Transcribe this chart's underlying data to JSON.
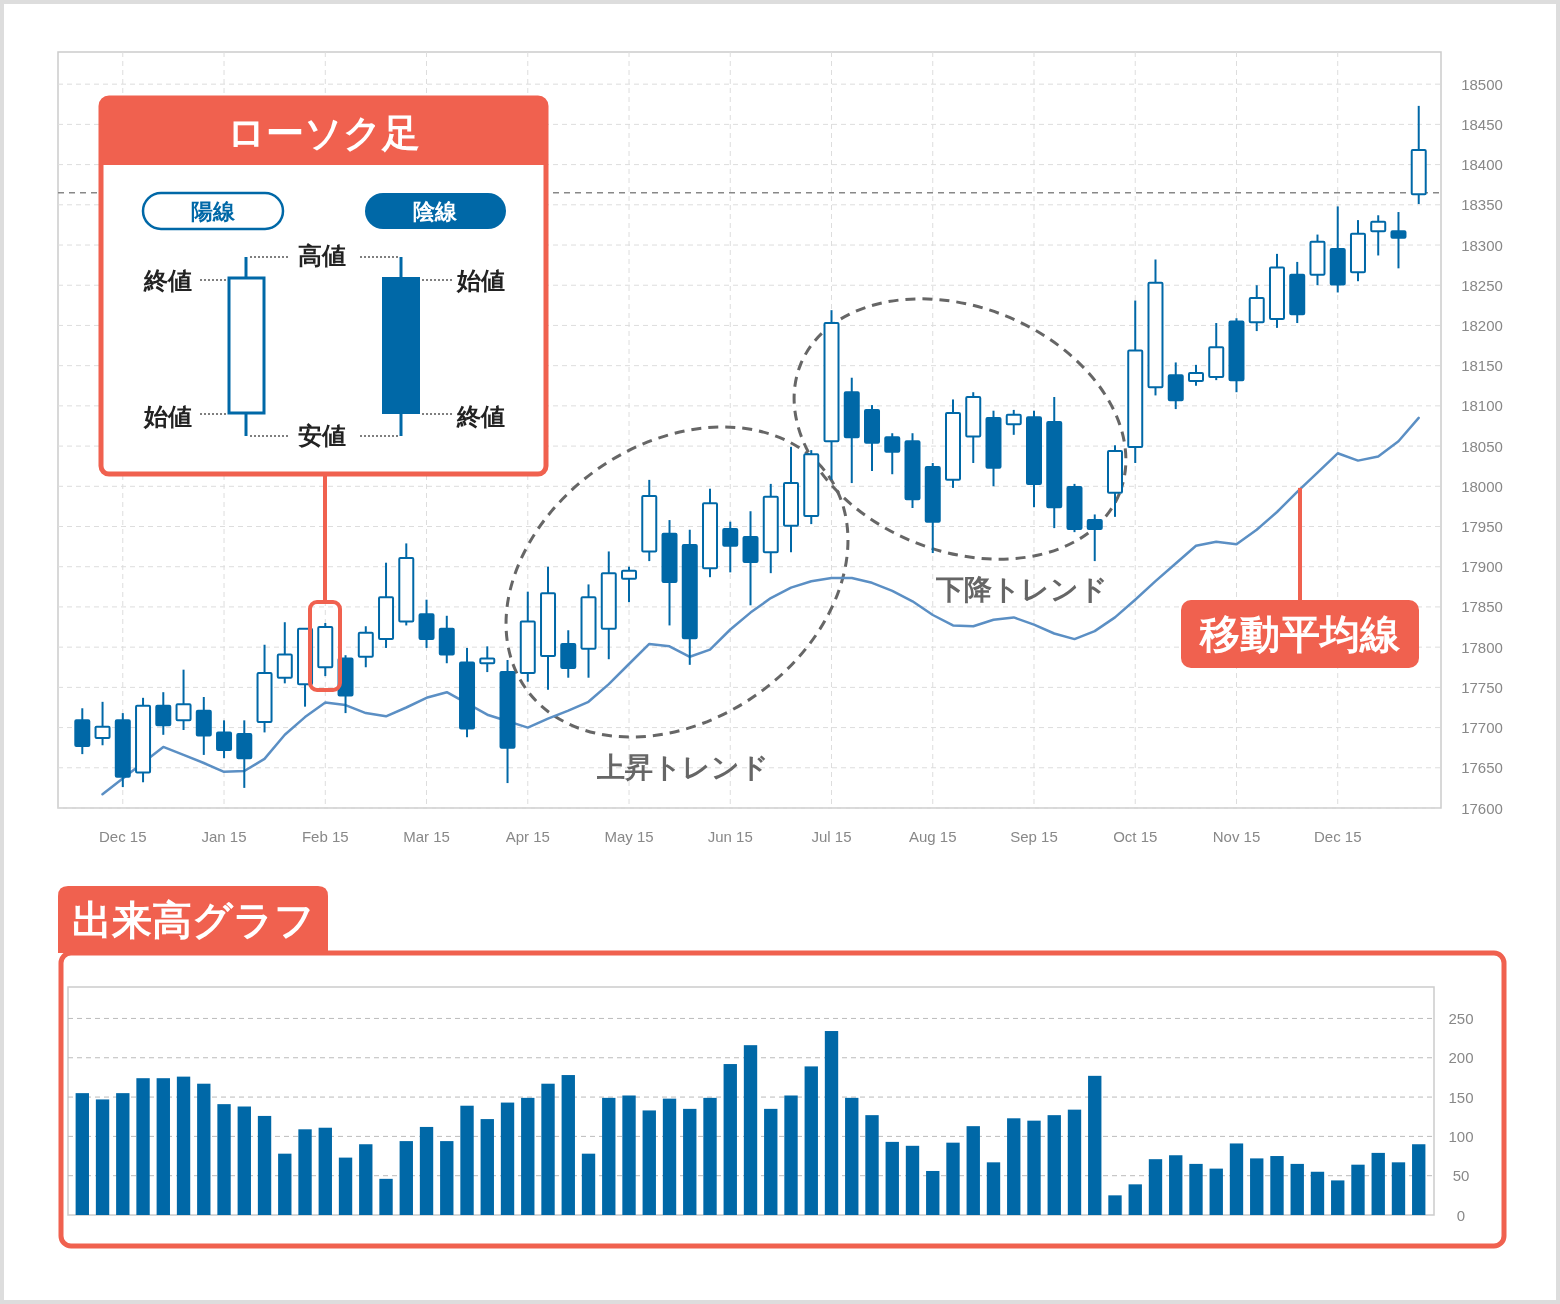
{
  "chart_data": [
    {
      "type": "candlestick",
      "categories": [
        null,
        null,
        "Dec 15",
        null,
        null,
        null,
        null,
        "Jan 15",
        null,
        null,
        null,
        null,
        "Feb 15",
        null,
        null,
        null,
        null,
        "Mar 15",
        null,
        null,
        null,
        null,
        "Apr 15",
        null,
        null,
        null,
        null,
        "May 15",
        null,
        null,
        null,
        null,
        "Jun 15",
        null,
        null,
        null,
        null,
        "Jul 15",
        null,
        null,
        null,
        null,
        "Aug 15",
        null,
        null,
        null,
        null,
        "Sep 15",
        null,
        null,
        null,
        null,
        "Oct 15",
        null,
        null,
        null,
        null,
        "Nov 15",
        null,
        null,
        null,
        null,
        "Dec 15",
        null,
        null,
        null,
        null
      ],
      "ohlc": [
        [
          17709,
          17724,
          17667,
          17677
        ],
        [
          17687,
          17732,
          17678,
          17701
        ],
        [
          17709,
          17718,
          17626,
          17639
        ],
        [
          17644,
          17737,
          17632,
          17727
        ],
        [
          17727,
          17744,
          17691,
          17703
        ],
        [
          17709,
          17772,
          17697,
          17729
        ],
        [
          17721,
          17738,
          17666,
          17690
        ],
        [
          17694,
          17709,
          17662,
          17672
        ],
        [
          17692,
          17709,
          17625,
          17662
        ],
        [
          17707,
          17803,
          17694,
          17768
        ],
        [
          17762,
          17831,
          17755,
          17791
        ],
        [
          17754,
          17823,
          17726,
          17823
        ],
        [
          17775,
          17830,
          17764,
          17825
        ],
        [
          17786,
          17790,
          17718,
          17740
        ],
        [
          17788,
          17826,
          17775,
          17818
        ],
        [
          17810,
          17905,
          17799,
          17862
        ],
        [
          17832,
          17929,
          17827,
          17911
        ],
        [
          17841,
          17859,
          17799,
          17810
        ],
        [
          17823,
          17839,
          17780,
          17791
        ],
        [
          17781,
          17799,
          17688,
          17699
        ],
        [
          17780,
          17801,
          17769,
          17786
        ],
        [
          17769,
          17784,
          17631,
          17675
        ],
        [
          17768,
          17869,
          17757,
          17832
        ],
        [
          17789,
          17900,
          17747,
          17867
        ],
        [
          17804,
          17821,
          17762,
          17774
        ],
        [
          17798,
          17878,
          17762,
          17862
        ],
        [
          17823,
          17919,
          17785,
          17892
        ],
        [
          17885,
          17900,
          17856,
          17895
        ],
        [
          17919,
          18008,
          17907,
          17988
        ],
        [
          17941,
          17958,
          17827,
          17881
        ],
        [
          17927,
          17946,
          17778,
          17811
        ],
        [
          17898,
          17997,
          17887,
          17979
        ],
        [
          17947,
          17956,
          17893,
          17926
        ],
        [
          17937,
          17969,
          17852,
          17906
        ],
        [
          17918,
          18003,
          17892,
          17987
        ],
        [
          17951,
          18049,
          17918,
          18004
        ],
        [
          17963,
          18045,
          17953,
          18040
        ],
        [
          18056,
          18219,
          18008,
          18203
        ],
        [
          18117,
          18135,
          18004,
          18061
        ],
        [
          18095,
          18101,
          18019,
          18054
        ],
        [
          18061,
          18066,
          18015,
          18043
        ],
        [
          18056,
          18066,
          17973,
          17984
        ],
        [
          18024,
          18029,
          17917,
          17956
        ],
        [
          18008,
          18108,
          17998,
          18091
        ],
        [
          18062,
          18117,
          18029,
          18111
        ],
        [
          18085,
          18094,
          18000,
          18023
        ],
        [
          18077,
          18095,
          18064,
          18089
        ],
        [
          18086,
          18094,
          17974,
          18003
        ],
        [
          18080,
          18111,
          17948,
          17974
        ],
        [
          17999,
          18003,
          17943,
          17947
        ],
        [
          17958,
          17965,
          17907,
          17947
        ],
        [
          17992,
          18051,
          17962,
          18044
        ],
        [
          18049,
          18231,
          18029,
          18169
        ],
        [
          18123,
          18282,
          18113,
          18253
        ],
        [
          18138,
          18154,
          18096,
          18107
        ],
        [
          18131,
          18151,
          18125,
          18141
        ],
        [
          18136,
          18203,
          18132,
          18173
        ],
        [
          18205,
          18209,
          18117,
          18132
        ],
        [
          18204,
          18250,
          18193,
          18234
        ],
        [
          18208,
          18289,
          18197,
          18272
        ],
        [
          18263,
          18279,
          18203,
          18214
        ],
        [
          18263,
          18313,
          18250,
          18304
        ],
        [
          18295,
          18348,
          18241,
          18251
        ],
        [
          18266,
          18331,
          18255,
          18314
        ],
        [
          18317,
          18337,
          18287,
          18329
        ],
        [
          18317,
          18341,
          18271,
          18309
        ],
        [
          18363,
          18473,
          18351,
          18418
        ]
      ],
      "color": "#0068a7",
      "series": [
        {
          "type": "line",
          "color": "#5b8fc4",
          "values": [
            null,
            17617,
            null,
            null,
            17676,
            17666,
            17656,
            17645,
            17646,
            17661,
            17691,
            17713,
            17731,
            17728,
            17718,
            17714,
            17725,
            17737,
            17744,
            null,
            17716,
            null,
            17700,
            17711,
            17721,
            17732,
            17754,
            17779,
            17804,
            17801,
            17788,
            17797,
            17822,
            17843,
            17861,
            17874,
            17882,
            17886,
            17886,
            17880,
            17870,
            17857,
            17840,
            17827,
            17826,
            17834,
            17837,
            17828,
            17817,
            17810,
            17820,
            17837,
            17859,
            17882,
            17904,
            17926,
            17931,
            17928,
            17946,
            17968,
            17993,
            18017,
            18041,
            18032,
            18037,
            18056,
            18085
          ]
        }
      ],
      "ylim": [
        17600,
        18540
      ],
      "yticks": [
        17600,
        17650,
        17700,
        17750,
        17800,
        17850,
        17900,
        17950,
        18000,
        18050,
        18100,
        18150,
        18200,
        18250,
        18300,
        18350,
        18400,
        18450,
        18500
      ],
      "grid": true,
      "ref_lines": [
        {
          "axis": "y",
          "value": 18365,
          "color": "#888888",
          "line_style": "dashed"
        }
      ],
      "annotations": [
        "ローソク足",
        "陽線",
        "陰線",
        "高値",
        "終値",
        "始値",
        "安値",
        "始値",
        "終値",
        "上昇トレンド",
        "下降トレンド",
        {
          "text": "移動平均線",
          "y": 17998
        }
      ]
    },
    {
      "type": "bar",
      "title": "出来高グラフ",
      "categories": [
        null,
        null,
        null,
        null,
        null,
        null,
        null,
        null,
        null,
        null,
        null,
        null,
        null,
        null,
        null,
        null,
        null,
        null,
        null,
        null,
        null,
        null,
        null,
        null,
        null,
        null,
        null,
        null,
        null,
        null,
        null,
        null,
        null,
        null,
        null,
        null,
        null,
        null,
        null,
        null,
        null,
        null,
        null,
        null,
        null,
        null,
        null,
        null,
        null,
        null,
        null,
        null,
        null,
        null,
        null,
        null,
        null,
        null,
        null,
        null,
        null,
        null,
        null,
        null,
        null,
        null,
        null
      ],
      "values": [
        155,
        147,
        155,
        174,
        174,
        176,
        167,
        141,
        138,
        126,
        78,
        109,
        111,
        73,
        90,
        46,
        94,
        112,
        94,
        139,
        122,
        143,
        149,
        167,
        178,
        78,
        149,
        152,
        133,
        148,
        135,
        149,
        192,
        216,
        135,
        152,
        189,
        234,
        149,
        127,
        93,
        88,
        56,
        92,
        113,
        67,
        123,
        120,
        127,
        134,
        177,
        25,
        39,
        71,
        76,
        65,
        59,
        91,
        72,
        75,
        65,
        55,
        44,
        64,
        79,
        67,
        90
      ],
      "color": "#0068a7",
      "ylim": [
        0,
        290
      ],
      "yticks": [
        0,
        50,
        100,
        150,
        200,
        250
      ],
      "grid": "y"
    }
  ]
}
